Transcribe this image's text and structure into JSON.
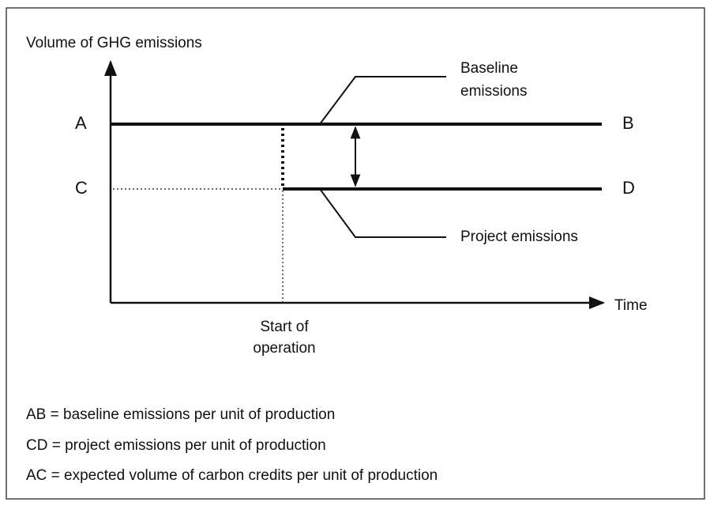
{
  "axes": {
    "y_label": "Volume of GHG emissions",
    "x_label": "Time"
  },
  "points": {
    "a": "A",
    "b": "B",
    "c": "C",
    "d": "D"
  },
  "labels": {
    "baseline": [
      "Baseline",
      "emissions"
    ],
    "project": "Project emissions",
    "start": [
      "Start of",
      "operation"
    ]
  },
  "legend": [
    "AB = baseline emissions per unit of production",
    "CD = project emissions per unit of production",
    "AC = expected volume of carbon credits per unit of production"
  ]
}
